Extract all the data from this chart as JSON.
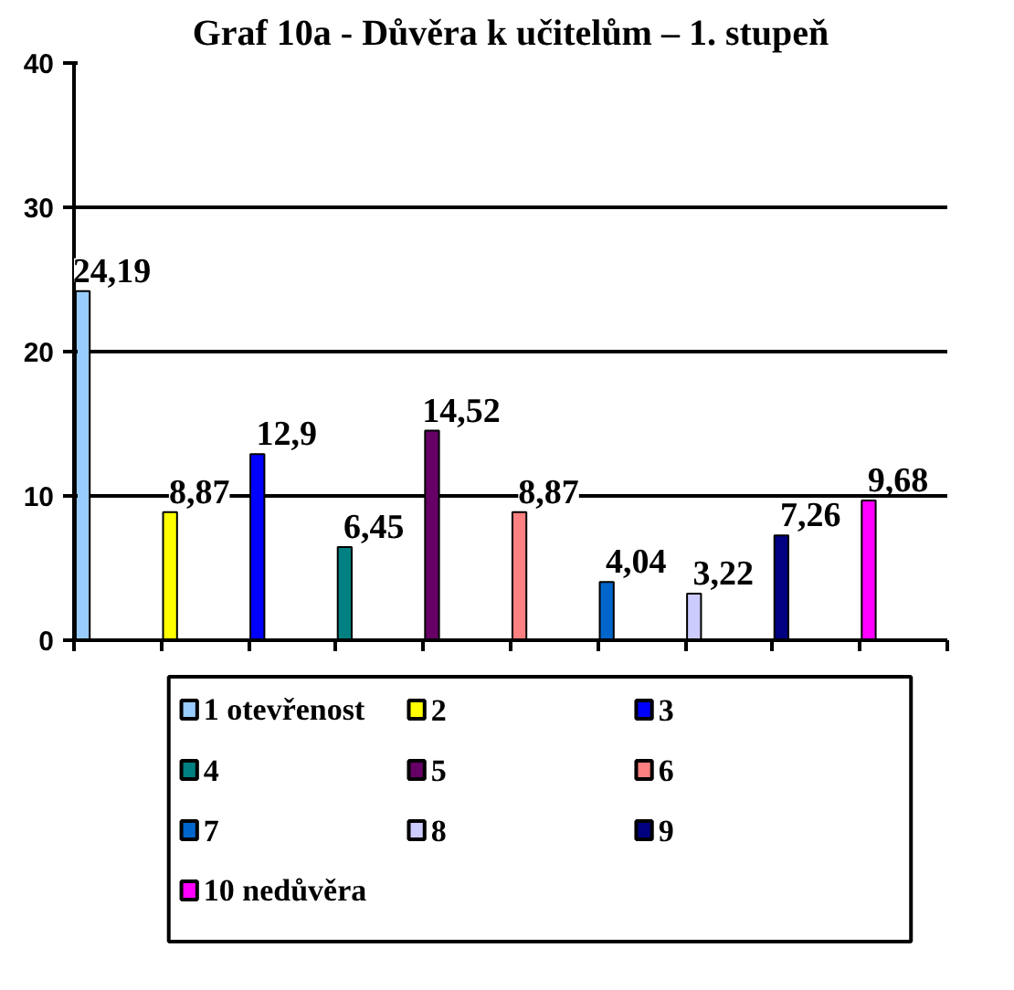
{
  "chart_data": {
    "type": "bar",
    "title": "Graf 10a - Důvěra k učitelům – 1. stupeň",
    "categories": [
      null,
      null,
      null,
      null,
      null,
      null,
      null,
      null,
      null,
      null
    ],
    "series": [
      {
        "name": "1 otevřenost",
        "color": "#99ccff",
        "values": [
          24.19,
          null,
          null,
          null,
          null,
          null,
          null,
          null,
          null,
          null
        ],
        "value_labels": [
          "24,19",
          null,
          null,
          null,
          null,
          null,
          null,
          null,
          null,
          null
        ]
      },
      {
        "name": "2",
        "color": "#ffff00",
        "values": [
          null,
          8.87,
          null,
          null,
          null,
          null,
          null,
          null,
          null,
          null
        ],
        "value_labels": [
          null,
          "8,87",
          null,
          null,
          null,
          null,
          null,
          null,
          null,
          null
        ]
      },
      {
        "name": "3",
        "color": "#0000ff",
        "values": [
          null,
          null,
          12.9,
          null,
          null,
          null,
          null,
          null,
          null,
          null
        ],
        "value_labels": [
          null,
          null,
          "12,9",
          null,
          null,
          null,
          null,
          null,
          null,
          null
        ]
      },
      {
        "name": "4",
        "color": "#008080",
        "values": [
          null,
          null,
          null,
          6.45,
          null,
          null,
          null,
          null,
          null,
          null
        ],
        "value_labels": [
          null,
          null,
          null,
          "6,45",
          null,
          null,
          null,
          null,
          null,
          null
        ]
      },
      {
        "name": "5",
        "color": "#660066",
        "values": [
          null,
          null,
          null,
          null,
          14.52,
          null,
          null,
          null,
          null,
          null
        ],
        "value_labels": [
          null,
          null,
          null,
          null,
          "14,52",
          null,
          null,
          null,
          null,
          null
        ]
      },
      {
        "name": "6",
        "color": "#ff8080",
        "values": [
          null,
          null,
          null,
          null,
          null,
          8.87,
          null,
          null,
          null,
          null
        ],
        "value_labels": [
          null,
          null,
          null,
          null,
          null,
          "8,87",
          null,
          null,
          null,
          null
        ]
      },
      {
        "name": "7",
        "color": "#0066cc",
        "values": [
          null,
          null,
          null,
          null,
          null,
          null,
          4.04,
          null,
          null,
          null
        ],
        "value_labels": [
          null,
          null,
          null,
          null,
          null,
          null,
          "4,04",
          null,
          null,
          null
        ]
      },
      {
        "name": "8",
        "color": "#ccccff",
        "values": [
          null,
          null,
          null,
          null,
          null,
          null,
          null,
          3.22,
          null,
          null
        ],
        "value_labels": [
          null,
          null,
          null,
          null,
          null,
          null,
          null,
          "3,22",
          null,
          null
        ]
      },
      {
        "name": "9",
        "color": "#000080",
        "values": [
          null,
          null,
          null,
          null,
          null,
          null,
          null,
          null,
          7.26,
          null
        ],
        "value_labels": [
          null,
          null,
          null,
          null,
          null,
          null,
          null,
          null,
          "7,26",
          null
        ]
      },
      {
        "name": "10 nedůvěra",
        "color": "#ff00ff",
        "values": [
          null,
          null,
          null,
          null,
          null,
          null,
          null,
          null,
          null,
          9.68
        ],
        "value_labels": [
          null,
          null,
          null,
          null,
          null,
          null,
          null,
          null,
          null,
          "9,68"
        ]
      }
    ],
    "ylim": [
      0,
      40
    ],
    "yticks": [
      0,
      10,
      20,
      30,
      40
    ],
    "grid": "y",
    "legend": "bottom"
  }
}
